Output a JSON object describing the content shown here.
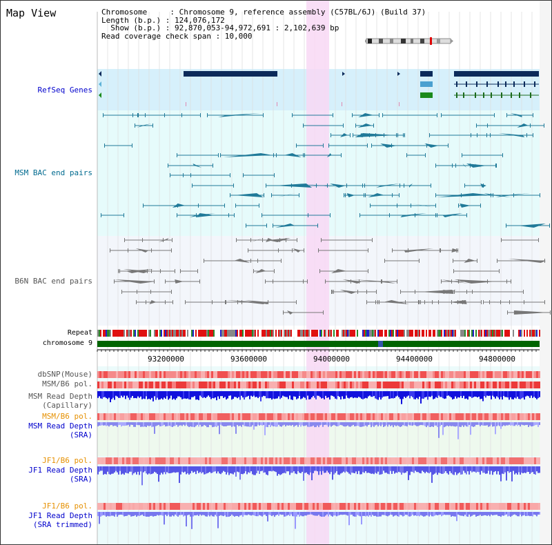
{
  "title": "Map View",
  "info": {
    "line1": "Chromosome     : Chromosome 9, reference assembly (C57BL/6J) (Build 37)",
    "line2": "Length (b.p.) : 124,076,172",
    "line3": "  Show (b.p.) : 92,870,053-94,972,691 : 2,102,639 bp",
    "line4": "Read coverage check span : 10,000"
  },
  "tracks": {
    "refseq": "RefSeq Genes",
    "msm_bac": "MSM BAC end pairs",
    "b6n_bac": "B6N BAC end pairs",
    "repeat": "Repeat",
    "chromosome": "chromosome 9",
    "dbsnp": "dbSNP(Mouse)",
    "msm_b6_pol": "MSM/B6 pol.",
    "msm_read_depth_cap_1": "MSM Read Depth",
    "msm_read_depth_cap_2": "(Capillary)",
    "msm_b6_pol_2": "MSM/B6 pol.",
    "msm_read_depth_sra_1": "MSM Read Depth",
    "msm_read_depth_sra_2": "(SRA)",
    "jf1_b6_pol": "JF1/B6 pol.",
    "jf1_read_depth_sra_1": "JF1 Read Depth",
    "jf1_read_depth_sra_2": "(SRA)",
    "jf1_b6_pol_2": "JF1/B6 pol.",
    "jf1_read_depth_trim_1": "JF1 Read Depth",
    "jf1_read_depth_trim_2": "(SRA trimmed)"
  },
  "axis": {
    "ticks": [
      "93200000",
      "93600000",
      "94000000",
      "94400000",
      "94800000"
    ]
  },
  "colors": {
    "highlight": "#f8d8f4",
    "refseq_bg": "#d6f0fb",
    "msm_bg": "#e6fbfb",
    "b6n_bg": "#f3f6fb",
    "gene": "#0b2a5a",
    "msm_feature": "#207a99",
    "b6n_feature": "#777777",
    "chromosome": "#006400",
    "snp": "#ee3333",
    "depth": "#1a1ae6",
    "depth_light": "#7777ee"
  }
}
